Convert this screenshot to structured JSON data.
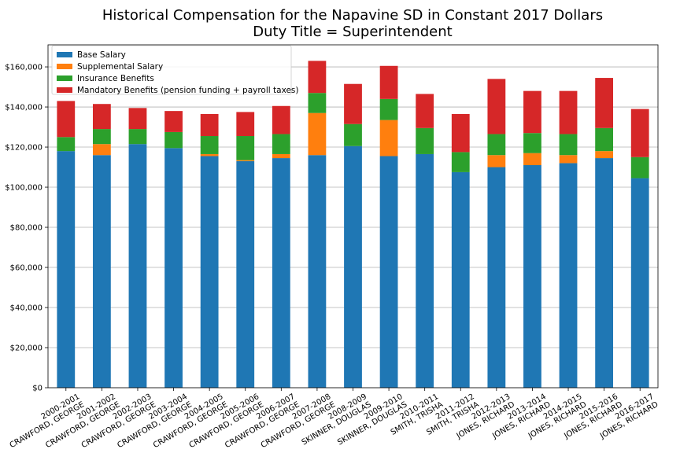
{
  "chart_data": {
    "type": "bar",
    "stacked": true,
    "title": "Historical Compensation for the Napavine SD in Constant 2017 Dollars",
    "subtitle": "Duty Title = Superintendent",
    "xlabel": "",
    "ylabel": "",
    "ylim": [
      0,
      171000
    ],
    "yticks": [
      0,
      20000,
      40000,
      60000,
      80000,
      100000,
      120000,
      140000,
      160000
    ],
    "ytick_labels": [
      "$0",
      "$20,000",
      "$40,000",
      "$60,000",
      "$80,000",
      "$100,000",
      "$120,000",
      "$140,000",
      "$160,000"
    ],
    "grid": "y",
    "legend_position": "top-left",
    "categories": [
      [
        "2000-2001",
        "CRAWFORD, GEORGE"
      ],
      [
        "2001-2002",
        "CRAWFORD, GEORGE"
      ],
      [
        "2002-2003",
        "CRAWFORD, GEORGE"
      ],
      [
        "2003-2004",
        "CRAWFORD, GEORGE"
      ],
      [
        "2004-2005",
        "CRAWFORD, GEORGE"
      ],
      [
        "2005-2006",
        "CRAWFORD, GEORGE"
      ],
      [
        "2006-2007",
        "CRAWFORD, GEORGE"
      ],
      [
        "2007-2008",
        "CRAWFORD, GEORGE"
      ],
      [
        "2008-2009",
        "SKINNER, DOUGLAS"
      ],
      [
        "2009-2010",
        "SKINNER, DOUGLAS"
      ],
      [
        "2010-2011",
        "SMITH, TRISHA"
      ],
      [
        "2011-2012",
        "SMITH, TRISHA"
      ],
      [
        "2012-2013",
        "JONES, RICHARD"
      ],
      [
        "2013-2014",
        "JONES, RICHARD"
      ],
      [
        "2014-2015",
        "JONES, RICHARD"
      ],
      [
        "2015-2016",
        "JONES, RICHARD"
      ],
      [
        "2016-2017",
        "JONES, RICHARD"
      ]
    ],
    "series": [
      {
        "name": "Base Salary",
        "color": "#1f77b4",
        "values": [
          118000,
          116000,
          121500,
          119500,
          115500,
          113000,
          114500,
          116000,
          120500,
          115500,
          116500,
          107500,
          110000,
          111000,
          112000,
          114500,
          104500
        ]
      },
      {
        "name": "Supplemental Salary",
        "color": "#ff7f0e",
        "values": [
          0,
          5500,
          0,
          0,
          1000,
          500,
          2000,
          21000,
          0,
          18000,
          0,
          0,
          6000,
          6000,
          4000,
          3500,
          0
        ]
      },
      {
        "name": "Insurance Benefits",
        "color": "#2ca02c",
        "values": [
          7000,
          7500,
          7500,
          8000,
          9000,
          12000,
          10000,
          10000,
          11000,
          10500,
          13000,
          10000,
          10500,
          10000,
          10500,
          11500,
          10500
        ]
      },
      {
        "name": "Mandatory Benefits (pension funding + payroll taxes)",
        "color": "#d62728",
        "values": [
          18000,
          12500,
          10500,
          10500,
          11000,
          12000,
          14000,
          16000,
          20000,
          16500,
          17000,
          19000,
          27500,
          21000,
          21500,
          25000,
          24000
        ]
      }
    ]
  }
}
